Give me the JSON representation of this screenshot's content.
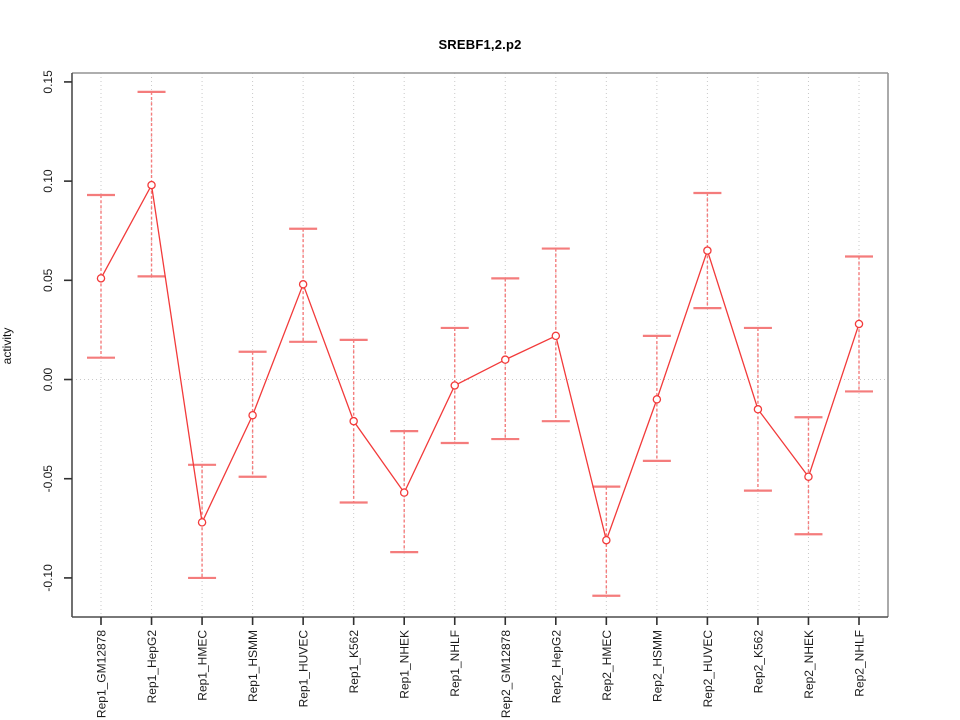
{
  "chart_data": {
    "type": "line",
    "title": "SREBF1,2.p2",
    "xlabel": "",
    "ylabel": "activity",
    "legend": "none",
    "grid": "vertical dotted gridline per category; dotted horizontal line at y=0",
    "categories": [
      "Rep1_GM12878",
      "Rep1_HepG2",
      "Rep1_HMEC",
      "Rep1_HSMM",
      "Rep1_HUVEC",
      "Rep1_K562",
      "Rep1_NHEK",
      "Rep1_NHLF",
      "Rep2_GM12878",
      "Rep2_HepG2",
      "Rep2_HMEC",
      "Rep2_HSMM",
      "Rep2_HUVEC",
      "Rep2_K562",
      "Rep2_NHEK",
      "Rep2_NHLF"
    ],
    "series": [
      {
        "name": "activity",
        "marker": "open-circle",
        "values": [
          0.051,
          0.098,
          -0.072,
          -0.018,
          0.048,
          -0.021,
          -0.057,
          -0.003,
          0.01,
          0.022,
          -0.081,
          -0.01,
          0.065,
          -0.015,
          -0.049,
          0.028
        ],
        "ci_upper": [
          0.093,
          0.145,
          -0.043,
          0.014,
          0.076,
          0.02,
          -0.026,
          0.026,
          0.051,
          0.066,
          -0.054,
          0.022,
          0.094,
          0.026,
          -0.019,
          0.062
        ],
        "ci_lower": [
          0.011,
          0.052,
          -0.1,
          -0.049,
          0.019,
          -0.062,
          -0.087,
          -0.032,
          -0.03,
          -0.021,
          -0.109,
          -0.041,
          0.036,
          -0.056,
          -0.078,
          -0.006
        ]
      }
    ],
    "yticks": [
      -0.1,
      -0.05,
      0.0,
      0.05,
      0.1,
      0.15
    ],
    "ytick_labels": [
      "-0.10",
      "-0.05",
      "0.00",
      "0.05",
      "0.10",
      "0.15"
    ],
    "ylim": [
      -0.1197,
      0.1545
    ],
    "tick_label_rotation_deg": 90,
    "colors": {
      "line": "#f23a3a",
      "marker_fill": "#ffffff",
      "error_bar": "#f47c7c",
      "grid": "#c9c9c9",
      "box_light": "#949494",
      "box_dark": "#4d4d4d",
      "tick": "#303030",
      "text": "#1c1c1c",
      "background": "#ffffff"
    }
  }
}
